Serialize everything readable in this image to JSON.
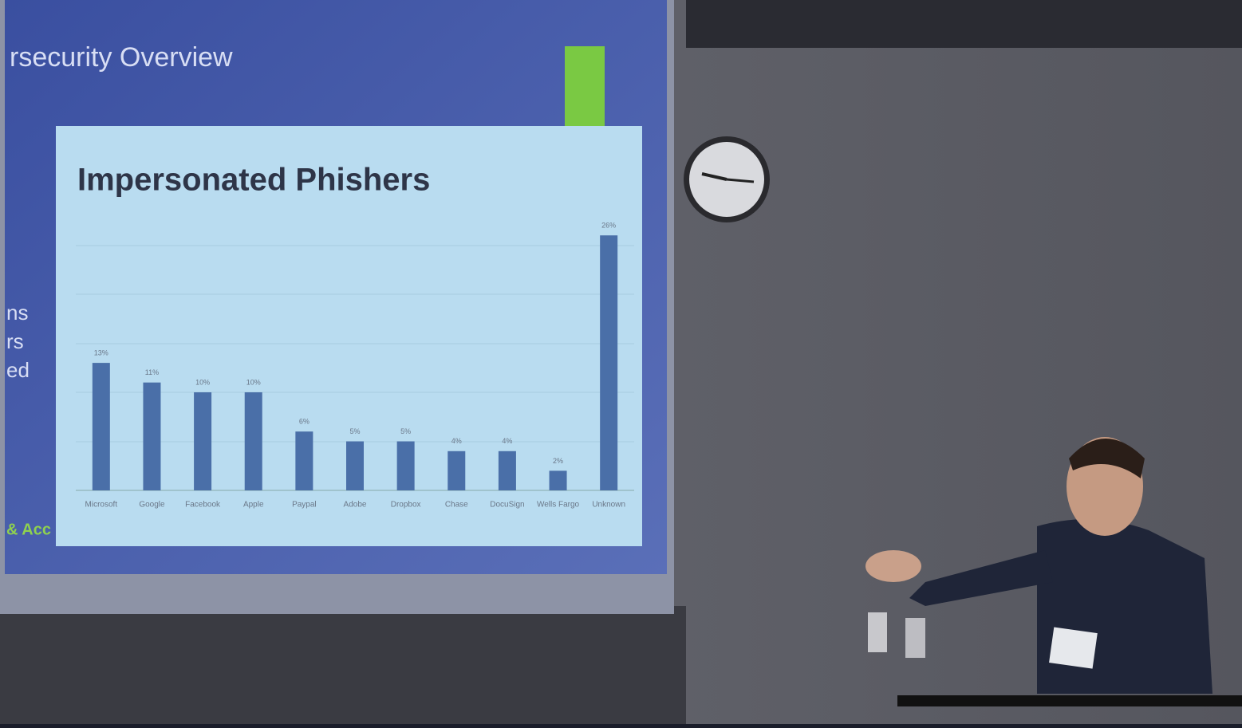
{
  "slide": {
    "heading": "rsecurity Overview",
    "side_fragments": [
      "ns",
      "rs",
      "ed",
      "& Acc"
    ]
  },
  "chart_data": {
    "type": "bar",
    "title": "Impersonated Phishers",
    "categories": [
      "Microsoft",
      "Google",
      "Facebook",
      "Apple",
      "Paypal",
      "Adobe",
      "Dropbox",
      "Chase",
      "DocuSign",
      "Wells Fargo",
      "Unknown"
    ],
    "values": [
      13,
      11,
      10,
      10,
      6,
      5,
      5,
      4,
      4,
      2,
      26
    ],
    "value_labels": [
      "13%",
      "11%",
      "10%",
      "10%",
      "6%",
      "5%",
      "5%",
      "4%",
      "4%",
      "2%",
      "26%"
    ],
    "color": "#4a6fa8",
    "ylim": [
      0,
      30
    ]
  }
}
